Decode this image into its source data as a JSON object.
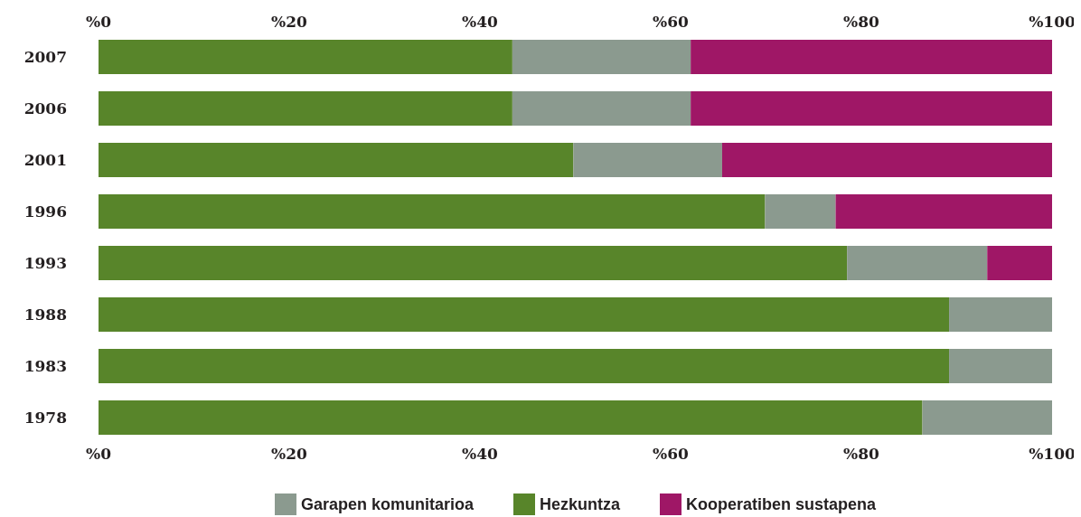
{
  "chart_data": {
    "type": "bar",
    "orientation": "horizontal",
    "stacked": true,
    "categories": [
      "2007",
      "2006",
      "2001",
      "1996",
      "1993",
      "1988",
      "1983",
      "1978"
    ],
    "series": [
      {
        "name": "Hezkuntza",
        "color": "#58852a",
        "values": [
          43.4,
          43.4,
          49.8,
          69.9,
          78.5,
          89.2,
          89.2,
          86.4
        ]
      },
      {
        "name": "Garapen komunitarioa",
        "color": "#8b9a8f",
        "values": [
          18.7,
          18.7,
          15.6,
          7.4,
          14.7,
          10.8,
          10.8,
          13.6
        ]
      },
      {
        "name": "Kooperatiben sustapena",
        "color": "#9f1766",
        "values": [
          37.9,
          37.9,
          34.6,
          22.7,
          6.8,
          null,
          null,
          null
        ]
      }
    ],
    "xlim": [
      0,
      100
    ],
    "xticks": [
      {
        "value": 0,
        "label": "%0"
      },
      {
        "value": 20,
        "label": "%20"
      },
      {
        "value": 40,
        "label": "%40"
      },
      {
        "value": 60,
        "label": "%60"
      },
      {
        "value": 80,
        "label": "%80"
      },
      {
        "value": 100,
        "label": "%100"
      }
    ],
    "x2lim": [
      0,
      100
    ],
    "x2ticks": [
      {
        "value": 0,
        "label": "%0"
      },
      {
        "value": 20,
        "label": "%20"
      },
      {
        "value": 40,
        "label": "%40"
      },
      {
        "value": 60,
        "label": "%60"
      },
      {
        "value": 80,
        "label": "%80"
      },
      {
        "value": 100,
        "label": "%100"
      }
    ],
    "legend": "bottom"
  }
}
